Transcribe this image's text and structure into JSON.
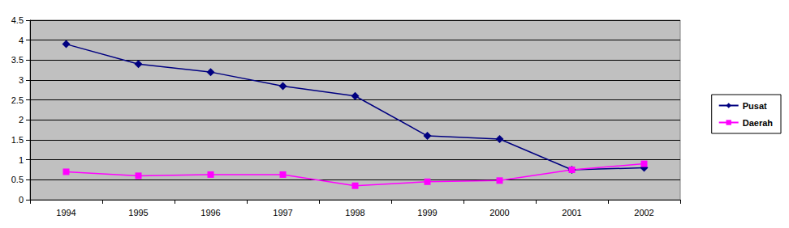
{
  "chart_data": {
    "type": "line",
    "categories": [
      "1994",
      "1995",
      "1996",
      "1997",
      "1998",
      "1999",
      "2000",
      "2001",
      "2002"
    ],
    "series": [
      {
        "name": "Pusat",
        "color": "#000080",
        "marker": "diamond",
        "values": [
          3.9,
          3.4,
          3.2,
          2.85,
          2.6,
          1.6,
          1.52,
          0.75,
          0.8
        ]
      },
      {
        "name": "Daerah",
        "color": "#ff00ff",
        "marker": "square",
        "values": [
          0.7,
          0.6,
          0.63,
          0.63,
          0.35,
          0.45,
          0.48,
          0.75,
          0.9
        ]
      }
    ],
    "ylim": [
      0,
      4.5
    ],
    "yticks": [
      0,
      0.5,
      1,
      1.5,
      2,
      2.5,
      3,
      3.5,
      4,
      4.5
    ],
    "grid": true,
    "legend": "right"
  }
}
